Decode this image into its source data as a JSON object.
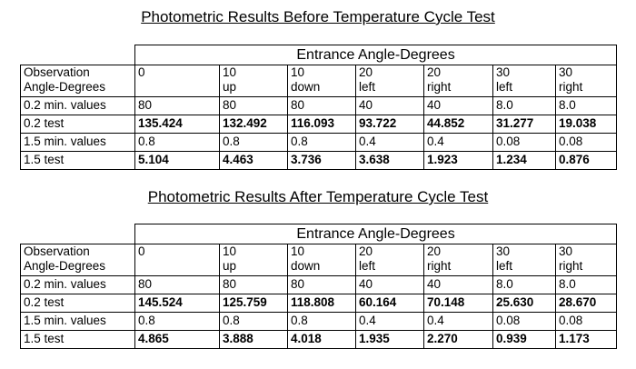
{
  "title_before": "Photometric Results Before Temperature Cycle Test",
  "title_after": "Photometric Results After Temperature Cycle Test",
  "entrance_header": "Entrance Angle-Degrees",
  "observation_header": [
    "Observation",
    "Angle-Degrees"
  ],
  "columns": [
    {
      "line1": "0",
      "line2": ""
    },
    {
      "line1": "10",
      "line2": "up"
    },
    {
      "line1": "10",
      "line2": "down"
    },
    {
      "line1": "20",
      "line2": "left"
    },
    {
      "line1": "20",
      "line2": "right"
    },
    {
      "line1": "30",
      "line2": "left"
    },
    {
      "line1": "30",
      "line2": "right"
    }
  ],
  "before": {
    "rows": [
      {
        "label": "0.2 min. values",
        "bold": false,
        "values": [
          "80",
          "80",
          "80",
          "40",
          "40",
          "8.0",
          "8.0"
        ]
      },
      {
        "label": "0.2 test",
        "bold": true,
        "values": [
          "135.424",
          "132.492",
          "116.093",
          "93.722",
          "44.852",
          "31.277",
          "19.038"
        ]
      },
      {
        "label": "1.5 min. values",
        "bold": false,
        "values": [
          "0.8",
          "0.8",
          "0.8",
          "0.4",
          "0.4",
          "0.08",
          "0.08"
        ]
      },
      {
        "label": "1.5 test",
        "bold": true,
        "values": [
          "5.104",
          "4.463",
          "3.736",
          "3.638",
          "1.923",
          "1.234",
          "0.876"
        ]
      }
    ]
  },
  "after": {
    "rows": [
      {
        "label": "0.2 min. values",
        "bold": false,
        "values": [
          "80",
          "80",
          "80",
          "40",
          "40",
          "8.0",
          "8.0"
        ]
      },
      {
        "label": "0.2 test",
        "bold": true,
        "values": [
          "145.524",
          "125.759",
          "118.808",
          "60.164",
          "70.148",
          "25.630",
          "28.670"
        ]
      },
      {
        "label": "1.5 min. values",
        "bold": false,
        "values": [
          "0.8",
          "0.8",
          "0.8",
          "0.4",
          "0.4",
          "0.08",
          "0.08"
        ]
      },
      {
        "label": "1.5 test",
        "bold": true,
        "values": [
          "4.865",
          "3.888",
          "4.018",
          "1.935",
          "2.270",
          "0.939",
          "1.173"
        ]
      }
    ]
  }
}
